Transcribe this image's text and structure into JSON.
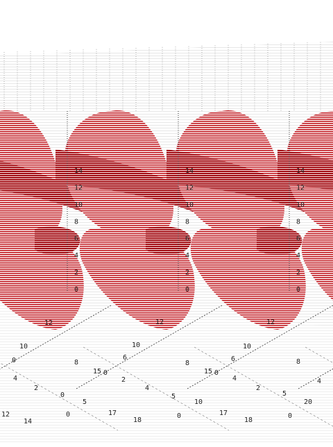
{
  "chart_data": {
    "type": "surface-3d-tiled",
    "panels": 4,
    "title": "",
    "z_ticks": [
      "0",
      "2",
      "4",
      "6",
      "8",
      "10",
      "12",
      "14"
    ],
    "x_ticks": [
      "0",
      "5",
      "10",
      "15",
      "20"
    ],
    "y_ticks": [
      "0",
      "2",
      "4",
      "6",
      "8",
      "10",
      "12",
      "14"
    ],
    "z_range": [
      0,
      14
    ],
    "surface_color": "#c0141c",
    "grid": true
  }
}
